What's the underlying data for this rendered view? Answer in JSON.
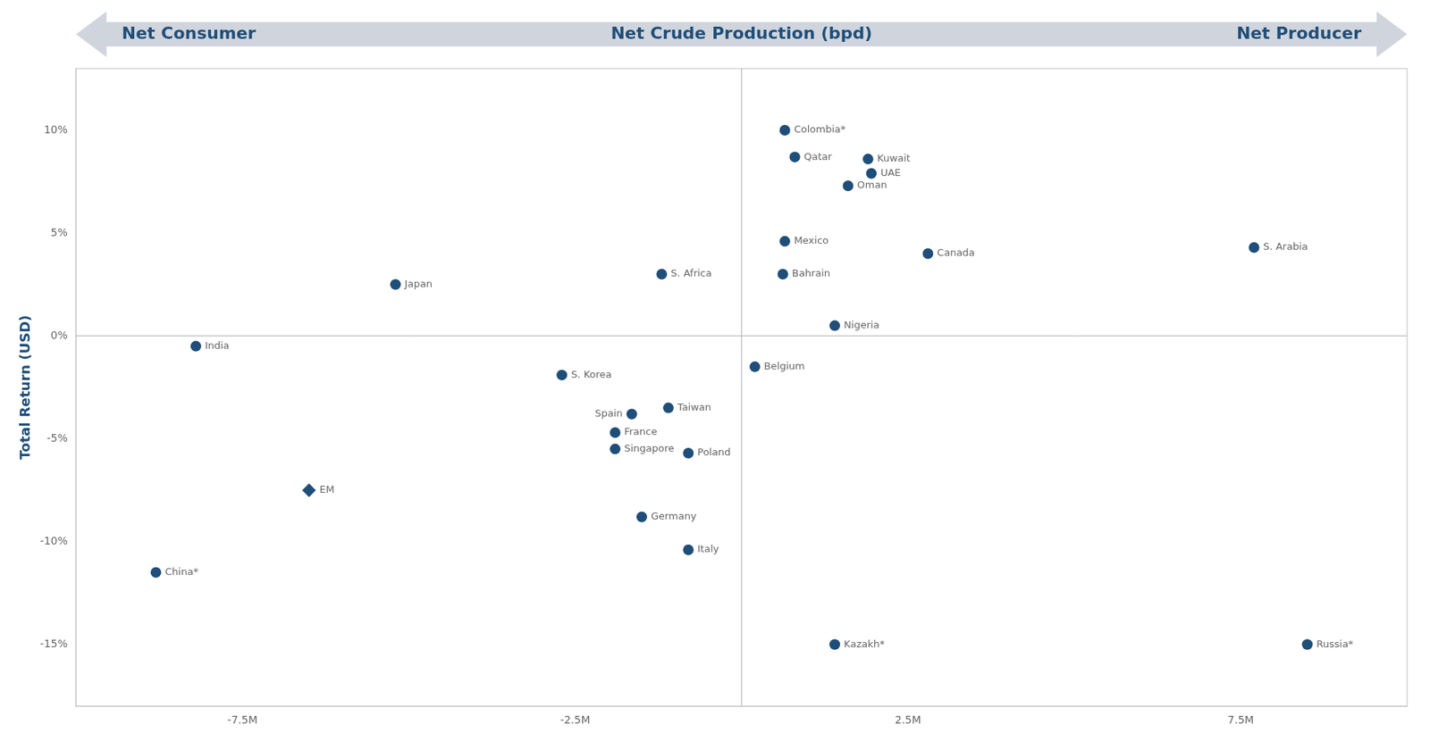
{
  "chart_data": {
    "type": "scatter",
    "xlabel": "Net Crude Production (bpd)",
    "ylabel": "Total Return (USD)",
    "annotations": [
      "Net Consumer",
      "Net Producer"
    ],
    "color": "#1F4E79",
    "grid": false,
    "series": [
      {
        "marker": "circle",
        "labels": [
          "Colombia*",
          "Qatar",
          "Kuwait",
          "UAE",
          "Oman",
          "Mexico",
          "Canada",
          "S. Arabia",
          "Bahrain",
          "Nigeria",
          "S. Africa",
          "Japan",
          "India",
          "Belgium",
          "S. Korea",
          "Taiwan",
          "Spain",
          "France",
          "Singapore",
          "Poland",
          "Germany",
          "Italy",
          "China*",
          "Kazakh*",
          "Russia*"
        ],
        "x": [
          650000,
          800000,
          1900000,
          1950000,
          1600000,
          650000,
          2800000,
          7700000,
          620000,
          1400000,
          -1200000,
          -5200000,
          -8200000,
          200000,
          -2700000,
          -1100000,
          -1650000,
          -1900000,
          -1900000,
          -800000,
          -1500000,
          -800000,
          -8800000,
          1400000,
          8500000
        ],
        "values": [
          0.1,
          0.087,
          0.086,
          0.079,
          0.073,
          0.046,
          0.04,
          0.043,
          0.03,
          0.005,
          0.03,
          0.025,
          -0.005,
          -0.015,
          -0.019,
          -0.035,
          -0.038,
          -0.047,
          -0.055,
          -0.057,
          -0.088,
          -0.104,
          -0.115,
          -0.15,
          -0.15
        ]
      },
      {
        "marker": "diamond",
        "labels": [
          "EM"
        ],
        "x": [
          -6500000
        ],
        "values": [
          -0.075
        ]
      }
    ],
    "xlim": [
      -10000000,
      10000000
    ],
    "ylim": [
      -0.18,
      0.13
    ],
    "xticks": [
      {
        "value": -7500000,
        "label": "-7.5M"
      },
      {
        "value": -2500000,
        "label": "-2.5M"
      },
      {
        "value": 2500000,
        "label": "2.5M"
      },
      {
        "value": 7500000,
        "label": "7.5M"
      }
    ],
    "yticks": [
      {
        "value": -0.15,
        "label": "-15%"
      },
      {
        "value": -0.1,
        "label": "-10%"
      },
      {
        "value": -0.05,
        "label": "-5%"
      },
      {
        "value": 0,
        "label": "0%"
      },
      {
        "value": 0.05,
        "label": "5%"
      },
      {
        "value": 0.1,
        "label": "10%"
      }
    ]
  }
}
